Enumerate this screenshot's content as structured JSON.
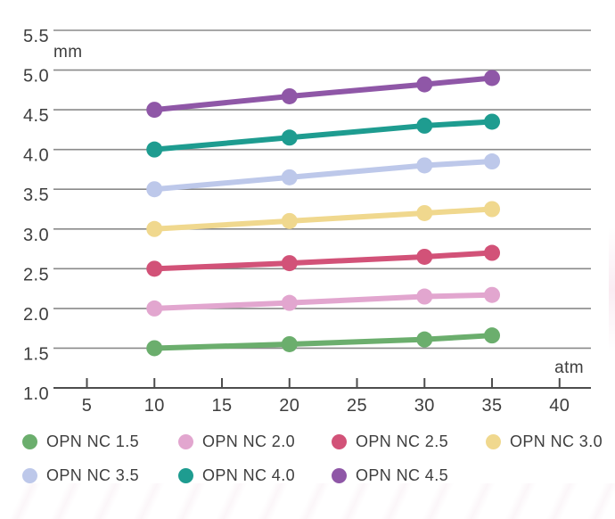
{
  "chart_data": {
    "type": "line",
    "title": "",
    "ylabel": "mm",
    "xlabel": "atm",
    "x": [
      10,
      20,
      30,
      35
    ],
    "x_ticks": [
      5,
      10,
      15,
      20,
      25,
      30,
      35,
      40
    ],
    "x_tick_labels": [
      "5",
      "10",
      "15",
      "20",
      "25",
      "30",
      "35",
      "40"
    ],
    "y_ticks": [
      1.0,
      1.5,
      2.0,
      2.5,
      3.0,
      3.5,
      4.0,
      4.5,
      5.0,
      5.5
    ],
    "y_tick_labels": [
      "1.0",
      "1.5",
      "2.0",
      "2.5",
      "3.0",
      "3.5",
      "4.0",
      "4.5",
      "5.0",
      "5.5"
    ],
    "xlim": [
      2.5,
      42.3
    ],
    "ylim": [
      1.0,
      5.5
    ],
    "grid": true,
    "legend_position": "bottom",
    "series": [
      {
        "name": "OPN NC 1.5",
        "color": "#6bae6d",
        "values": [
          1.5,
          1.55,
          1.61,
          1.66
        ]
      },
      {
        "name": "OPN NC 2.0",
        "color": "#e2a6cf",
        "values": [
          2.0,
          2.07,
          2.15,
          2.17
        ]
      },
      {
        "name": "OPN NC 2.5",
        "color": "#d25278",
        "values": [
          2.5,
          2.57,
          2.65,
          2.7
        ]
      },
      {
        "name": "OPN NC 3.0",
        "color": "#f0d88e",
        "values": [
          3.0,
          3.1,
          3.2,
          3.25
        ]
      },
      {
        "name": "OPN NC 3.5",
        "color": "#bdc8ea",
        "values": [
          3.5,
          3.65,
          3.8,
          3.85
        ]
      },
      {
        "name": "OPN NC 4.0",
        "color": "#1e9c90",
        "values": [
          4.0,
          4.15,
          4.3,
          4.35
        ]
      },
      {
        "name": "OPN NC 4.5",
        "color": "#8f57a7",
        "values": [
          4.5,
          4.67,
          4.82,
          4.9
        ]
      }
    ],
    "style": {
      "grid_color": "#8a8a8a",
      "axis_color": "#4d4d4d",
      "text_color": "#3e3e3e",
      "background": "#ffffff"
    }
  }
}
